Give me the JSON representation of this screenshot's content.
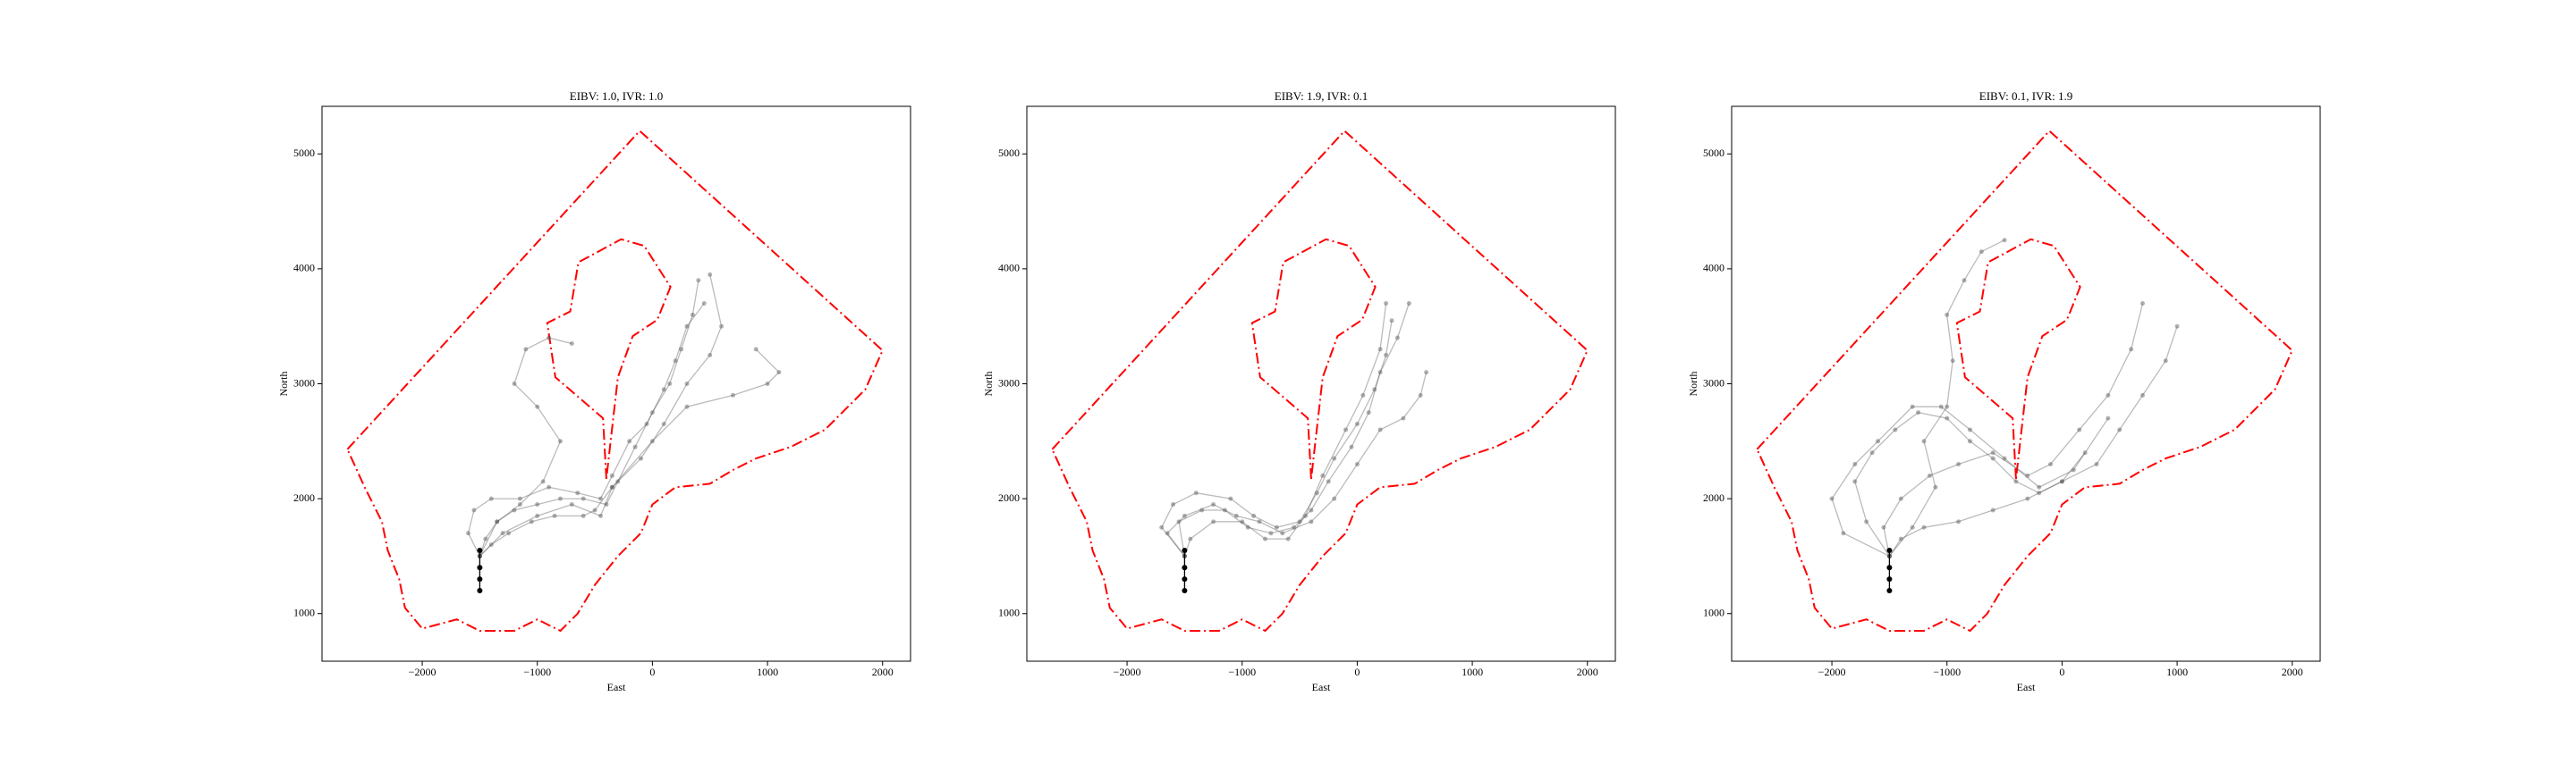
{
  "chart_data": [
    {
      "type": "line",
      "title": "EIBV: 1.0, IVR: 1.0",
      "xlabel": "East",
      "ylabel": "North",
      "xlim": [
        -2871,
        2243
      ],
      "ylim": [
        586,
        5414
      ],
      "xticks": [
        {
          "value": -2000,
          "label": "−2000"
        },
        {
          "value": -1000,
          "label": "−1000"
        },
        0,
        1000,
        2000
      ],
      "yticks": [
        1000,
        2000,
        3000,
        4000,
        5000
      ],
      "series": [
        {
          "color": "#ff0000",
          "linestyle": "dashdot",
          "marker": false,
          "x": [
            -2650,
            -110,
            2000,
            1850,
            1700,
            1500,
            1200,
            900,
            700,
            500,
            200,
            0,
            -100,
            -300,
            -500,
            -650,
            -800,
            -1000,
            -1200,
            -1500,
            -1700,
            -2000,
            -2150,
            -2200,
            -2300,
            -2350,
            -2500,
            -2650
          ],
          "y": [
            2430,
            5200,
            3290,
            2950,
            2800,
            2600,
            2450,
            2350,
            2250,
            2130,
            2100,
            1950,
            1700,
            1500,
            1250,
            1000,
            850,
            950,
            850,
            850,
            950,
            870,
            1050,
            1300,
            1550,
            1800,
            2100,
            2430
          ]
        },
        {
          "color": "#ff0000",
          "linestyle": "dashdot",
          "marker": false,
          "x": [
            -400,
            -429,
            -843,
            -914,
            -714,
            -643,
            -271,
            -71,
            157,
            43,
            -171,
            -300,
            -400
          ],
          "y": [
            2171,
            2700,
            3057,
            3529,
            3629,
            4057,
            4257,
            4200,
            3843,
            3557,
            3414,
            3057,
            2171
          ]
        },
        {
          "color": "#555555",
          "linestyle": "solid",
          "marker": true,
          "x": [
            -1500,
            -1450,
            -1350,
            -1200,
            -1000,
            -800,
            -600,
            -400,
            -300,
            -150,
            0,
            150,
            250,
            350,
            400
          ],
          "y": [
            1500,
            1650,
            1800,
            1900,
            1950,
            2000,
            2000,
            1950,
            2150,
            2450,
            2750,
            3000,
            3300,
            3600,
            3900
          ]
        },
        {
          "color": "#555555",
          "linestyle": "solid",
          "marker": true,
          "x": [
            -1500,
            -1600,
            -1550,
            -1400,
            -1150,
            -900,
            -650,
            -450,
            -350,
            -200,
            -50,
            100,
            200,
            300,
            450
          ],
          "y": [
            1500,
            1700,
            1900,
            2000,
            2000,
            2100,
            2050,
            2000,
            2200,
            2500,
            2650,
            2950,
            3200,
            3500,
            3700
          ]
        },
        {
          "color": "#555555",
          "linestyle": "solid",
          "marker": true,
          "x": [
            -1500,
            -1400,
            -1250,
            -1050,
            -850,
            -600,
            -500,
            -350,
            -100,
            100,
            300,
            500,
            600,
            500
          ],
          "y": [
            1500,
            1600,
            1700,
            1800,
            1850,
            1850,
            1900,
            2100,
            2350,
            2650,
            3000,
            3250,
            3500,
            3950
          ]
        },
        {
          "color": "#555555",
          "linestyle": "solid",
          "marker": true,
          "x": [
            -1500,
            -1350,
            -1150,
            -950,
            -800,
            -1000,
            -1200,
            -1100,
            -900,
            -700
          ],
          "y": [
            1500,
            1800,
            1950,
            2150,
            2500,
            2800,
            3000,
            3300,
            3400,
            3350
          ]
        },
        {
          "color": "#555555",
          "linestyle": "solid",
          "marker": true,
          "x": [
            -1500,
            -1300,
            -1000,
            -700,
            -450,
            -350,
            0,
            300,
            700,
            1000,
            1100,
            900
          ],
          "y": [
            1500,
            1700,
            1850,
            1950,
            1850,
            2100,
            2500,
            2800,
            2900,
            3000,
            3100,
            3300
          ]
        },
        {
          "color": "#000000",
          "linestyle": "solid",
          "marker": true,
          "x": [
            -1500,
            -1500,
            -1500,
            -1500
          ],
          "y": [
            1200,
            1300,
            1400,
            1550
          ]
        }
      ]
    },
    {
      "type": "line",
      "title": "EIBV: 1.9, IVR: 0.1",
      "xlabel": "East",
      "ylabel": "North",
      "xlim": [
        -2871,
        2243
      ],
      "ylim": [
        586,
        5414
      ],
      "xticks": [
        {
          "value": -2000,
          "label": "−2000"
        },
        {
          "value": -1000,
          "label": "−1000"
        },
        0,
        1000,
        2000
      ],
      "yticks": [
        1000,
        2000,
        3000,
        4000,
        5000
      ],
      "series": [
        {
          "color": "#ff0000",
          "linestyle": "dashdot",
          "marker": false,
          "x": [
            -2650,
            -110,
            2000,
            1850,
            1700,
            1500,
            1200,
            900,
            700,
            500,
            200,
            0,
            -100,
            -300,
            -500,
            -650,
            -800,
            -1000,
            -1200,
            -1500,
            -1700,
            -2000,
            -2150,
            -2200,
            -2300,
            -2350,
            -2500,
            -2650
          ],
          "y": [
            2430,
            5200,
            3290,
            2950,
            2800,
            2600,
            2450,
            2350,
            2250,
            2130,
            2100,
            1950,
            1700,
            1500,
            1250,
            1000,
            850,
            950,
            850,
            850,
            950,
            870,
            1050,
            1300,
            1550,
            1800,
            2100,
            2430
          ]
        },
        {
          "color": "#ff0000",
          "linestyle": "dashdot",
          "marker": false,
          "x": [
            -400,
            -429,
            -843,
            -914,
            -714,
            -643,
            -271,
            -71,
            157,
            43,
            -171,
            -300,
            -400
          ],
          "y": [
            2171,
            2700,
            3057,
            3529,
            3629,
            4057,
            4257,
            4200,
            3843,
            3557,
            3414,
            3057,
            2171
          ]
        },
        {
          "color": "#555555",
          "linestyle": "solid",
          "marker": true,
          "x": [
            -1500,
            -1700,
            -1600,
            -1400,
            -1100,
            -900,
            -700,
            -500,
            -350,
            -200,
            0,
            150,
            250,
            300
          ],
          "y": [
            1500,
            1750,
            1950,
            2050,
            2000,
            1850,
            1750,
            1800,
            2050,
            2350,
            2650,
            2950,
            3250,
            3550
          ]
        },
        {
          "color": "#555555",
          "linestyle": "solid",
          "marker": true,
          "x": [
            -1500,
            -1550,
            -1350,
            -1150,
            -950,
            -750,
            -550,
            -400,
            -250,
            -50,
            100,
            200,
            350,
            450
          ],
          "y": [
            1500,
            1800,
            1900,
            1900,
            1750,
            1700,
            1750,
            1900,
            2150,
            2450,
            2750,
            3100,
            3400,
            3700
          ]
        },
        {
          "color": "#555555",
          "linestyle": "solid",
          "marker": true,
          "x": [
            -1500,
            -1650,
            -1500,
            -1250,
            -1050,
            -850,
            -650,
            -400,
            -200,
            0,
            200,
            400,
            550,
            600
          ],
          "y": [
            1500,
            1700,
            1850,
            1950,
            1850,
            1800,
            1700,
            1800,
            2000,
            2300,
            2600,
            2700,
            2900,
            3100
          ]
        },
        {
          "color": "#555555",
          "linestyle": "solid",
          "marker": true,
          "x": [
            -1500,
            -1450,
            -1250,
            -1000,
            -800,
            -600,
            -450,
            -300,
            -100,
            50,
            200,
            250
          ],
          "y": [
            1500,
            1650,
            1800,
            1800,
            1650,
            1650,
            1850,
            2200,
            2600,
            2900,
            3300,
            3700
          ]
        },
        {
          "color": "#000000",
          "linestyle": "solid",
          "marker": true,
          "x": [
            -1500,
            -1500,
            -1500,
            -1500
          ],
          "y": [
            1200,
            1300,
            1400,
            1550
          ]
        }
      ]
    },
    {
      "type": "line",
      "title": "EIBV: 0.1, IVR: 1.9",
      "xlabel": "East",
      "ylabel": "North",
      "xlim": [
        -2871,
        2243
      ],
      "ylim": [
        586,
        5414
      ],
      "xticks": [
        {
          "value": -2000,
          "label": "−2000"
        },
        {
          "value": -1000,
          "label": "−1000"
        },
        0,
        1000,
        2000
      ],
      "yticks": [
        1000,
        2000,
        3000,
        4000,
        5000
      ],
      "series": [
        {
          "color": "#ff0000",
          "linestyle": "dashdot",
          "marker": false,
          "x": [
            -2650,
            -110,
            2000,
            1850,
            1700,
            1500,
            1200,
            900,
            700,
            500,
            200,
            0,
            -100,
            -300,
            -500,
            -650,
            -800,
            -1000,
            -1200,
            -1500,
            -1700,
            -2000,
            -2150,
            -2200,
            -2300,
            -2350,
            -2500,
            -2650
          ],
          "y": [
            2430,
            5200,
            3290,
            2950,
            2800,
            2600,
            2450,
            2350,
            2250,
            2130,
            2100,
            1950,
            1700,
            1500,
            1250,
            1000,
            850,
            950,
            850,
            850,
            950,
            870,
            1050,
            1300,
            1550,
            1800,
            2100,
            2430
          ]
        },
        {
          "color": "#ff0000",
          "linestyle": "dashdot",
          "marker": false,
          "x": [
            -400,
            -429,
            -843,
            -914,
            -714,
            -643,
            -271,
            -71,
            157,
            43,
            -171,
            -300,
            -400
          ],
          "y": [
            2171,
            2700,
            3057,
            3529,
            3629,
            4057,
            4257,
            4200,
            3843,
            3557,
            3414,
            3057,
            2171
          ]
        },
        {
          "color": "#555555",
          "linestyle": "solid",
          "marker": true,
          "x": [
            -1500,
            -1700,
            -1800,
            -1650,
            -1450,
            -1250,
            -1000,
            -800,
            -600,
            -400,
            -200,
            0,
            200
          ],
          "y": [
            1500,
            1800,
            2150,
            2400,
            2600,
            2750,
            2700,
            2500,
            2350,
            2150,
            2050,
            2150,
            2400
          ]
        },
        {
          "color": "#555555",
          "linestyle": "solid",
          "marker": true,
          "x": [
            -1500,
            -1300,
            -1100,
            -1200,
            -1000,
            -950,
            -1000,
            -850,
            -700,
            -500
          ],
          "y": [
            1500,
            1750,
            2100,
            2500,
            2800,
            3200,
            3600,
            3900,
            4150,
            4250
          ]
        },
        {
          "color": "#555555",
          "linestyle": "solid",
          "marker": true,
          "x": [
            -1500,
            -1400,
            -1200,
            -900,
            -600,
            -300,
            0,
            300,
            500,
            700,
            900,
            1000
          ],
          "y": [
            1500,
            1650,
            1750,
            1800,
            1900,
            2000,
            2150,
            2300,
            2600,
            2900,
            3200,
            3500
          ]
        },
        {
          "color": "#555555",
          "linestyle": "solid",
          "marker": true,
          "x": [
            -1500,
            -1550,
            -1400,
            -1150,
            -900,
            -600,
            -300,
            -100,
            150,
            400,
            600,
            700
          ],
          "y": [
            1500,
            1750,
            2000,
            2200,
            2300,
            2400,
            2200,
            2300,
            2600,
            2900,
            3300,
            3700
          ]
        },
        {
          "color": "#555555",
          "linestyle": "solid",
          "marker": true,
          "x": [
            -1500,
            -1900,
            -2000,
            -1800,
            -1600,
            -1300,
            -1050,
            -800,
            -500,
            -200,
            100,
            400
          ],
          "y": [
            1500,
            1700,
            2000,
            2300,
            2500,
            2800,
            2800,
            2600,
            2350,
            2100,
            2250,
            2700
          ]
        },
        {
          "color": "#000000",
          "linestyle": "solid",
          "marker": true,
          "x": [
            -1500,
            -1500,
            -1500,
            -1500
          ],
          "y": [
            1200,
            1300,
            1400,
            1550
          ]
        }
      ]
    }
  ]
}
